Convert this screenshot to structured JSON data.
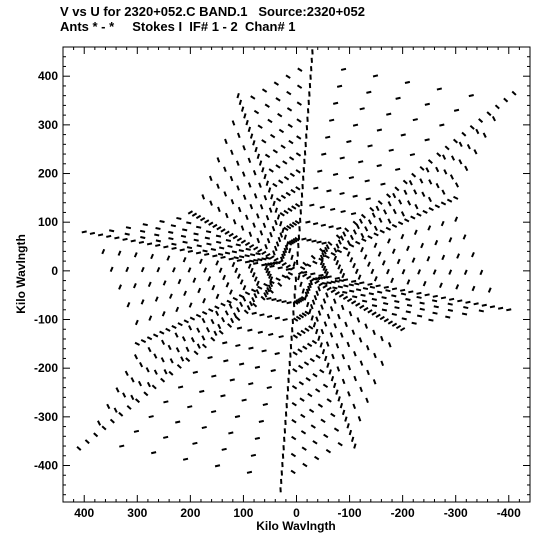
{
  "title_line1": "V vs U for 2320+052.C BAND.1   Source:2320+052",
  "title_line2": "Ants * - *     Stokes I  IF# 1 - 2  Chan# 1",
  "chart_data": {
    "type": "scatter",
    "xlabel": "Kilo Wavlngth",
    "ylabel": "Kilo Wavlngth",
    "xlim": [
      440,
      -440
    ],
    "ylim": [
      -475,
      460
    ],
    "x_reversed": true,
    "x_ticks": [
      400,
      300,
      200,
      100,
      0,
      -100,
      -200,
      -300,
      -400
    ],
    "y_ticks": [
      400,
      300,
      200,
      100,
      0,
      -100,
      -200,
      -300,
      -400
    ],
    "grid": false,
    "legend": "none",
    "marker_color": "#000000",
    "uv_arms_end_points": [
      {
        "u": -410,
        "v": 365
      },
      {
        "u": 410,
        "v": -365
      },
      {
        "u": -30,
        "v": 450
      },
      {
        "u": 30,
        "v": -450
      },
      {
        "u": 400,
        "v": 80
      },
      {
        "u": -400,
        "v": -80
      },
      {
        "u": 200,
        "v": 120
      },
      {
        "u": -200,
        "v": -120
      },
      {
        "u": -300,
        "v": 150
      },
      {
        "u": 300,
        "v": -150
      },
      {
        "u": 110,
        "v": 360
      },
      {
        "u": -110,
        "v": -360
      }
    ]
  }
}
